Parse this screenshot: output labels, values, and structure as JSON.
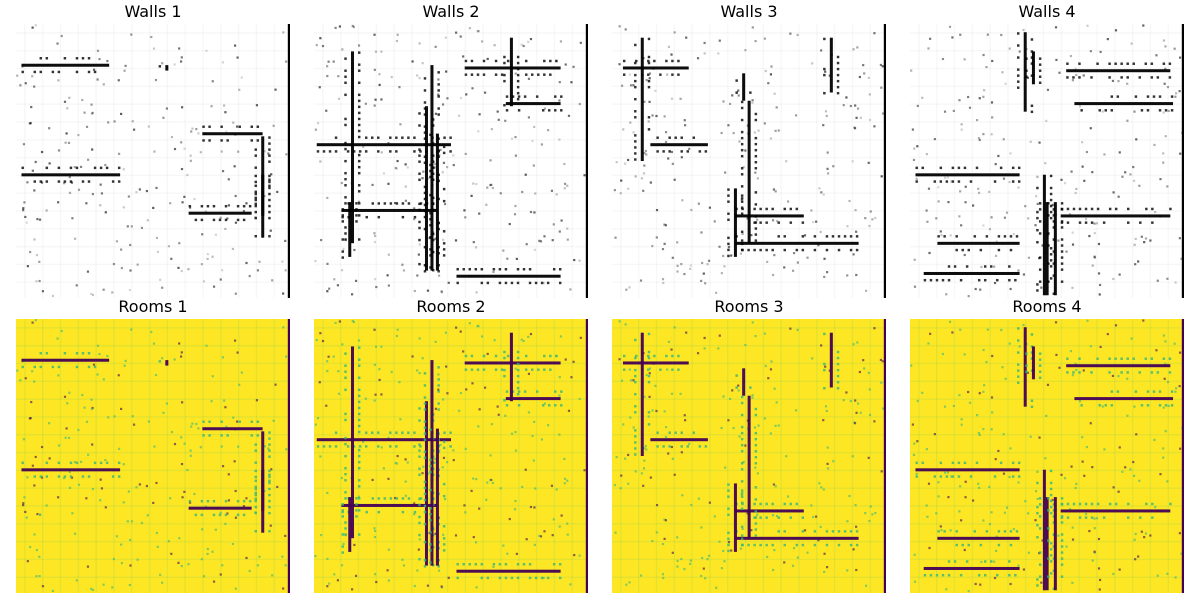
{
  "figure": {
    "panels": [
      {
        "title": "Walls 1",
        "colormap": "gray_r",
        "seed": 11
      },
      {
        "title": "Walls 2",
        "colormap": "gray_r",
        "seed": 22
      },
      {
        "title": "Walls 3",
        "colormap": "gray_r",
        "seed": 33
      },
      {
        "title": "Walls 4",
        "colormap": "gray_r",
        "seed": 44
      },
      {
        "title": "Rooms 1",
        "colormap": "viridis",
        "seed": 11
      },
      {
        "title": "Rooms 2",
        "colormap": "viridis",
        "seed": 22
      },
      {
        "title": "Rooms 3",
        "colormap": "viridis",
        "seed": 33
      },
      {
        "title": "Rooms 4",
        "colormap": "viridis",
        "seed": 44
      }
    ],
    "colors": {
      "walls_background": "#ffffff",
      "walls_ink": "#000000",
      "rooms_background": "#fde725",
      "rooms_mid": "#35b779",
      "rooms_dark": "#440154"
    }
  }
}
